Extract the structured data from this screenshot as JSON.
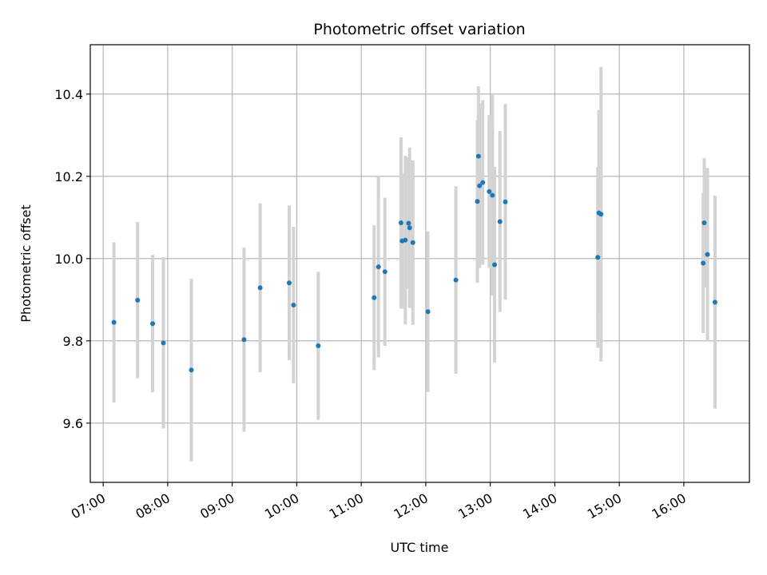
{
  "chart_data": {
    "type": "scatter",
    "title": "Photometric offset variation",
    "xlabel": "UTC time",
    "ylabel": "Photometric offset",
    "x_unit": "HH:MM",
    "xlim": [
      "06:48",
      "17:01"
    ],
    "ylim": [
      9.456,
      10.52
    ],
    "x_ticks": [
      "07:00",
      "08:00",
      "09:00",
      "10:00",
      "11:00",
      "12:00",
      "13:00",
      "14:00",
      "15:00",
      "16:00"
    ],
    "y_ticks": [
      9.6,
      9.8,
      10.0,
      10.2,
      10.4
    ],
    "y_tick_labels": [
      "9.6",
      "9.8",
      "10.0",
      "10.2",
      "10.4"
    ],
    "grid": true,
    "colors": {
      "marker": "#1f77b4",
      "errorbar": "#d3d3d3",
      "grid": "#b0b0b0"
    },
    "series": [
      {
        "points": [
          {
            "x": "07:10",
            "y": 9.845,
            "err": 0.195
          },
          {
            "x": "07:32",
            "y": 9.899,
            "err": 0.19
          },
          {
            "x": "07:46",
            "y": 9.842,
            "err": 0.167
          },
          {
            "x": "07:56",
            "y": 9.795,
            "err": 0.208
          },
          {
            "x": "08:22",
            "y": 9.729,
            "err": 0.222
          },
          {
            "x": "09:11",
            "y": 9.803,
            "err": 0.224
          },
          {
            "x": "09:26",
            "y": 9.929,
            "err": 0.205
          },
          {
            "x": "09:53",
            "y": 9.941,
            "err": 0.188
          },
          {
            "x": "09:57",
            "y": 9.887,
            "err": 0.19
          },
          {
            "x": "10:20",
            "y": 9.788,
            "err": 0.18
          },
          {
            "x": "11:12",
            "y": 9.905,
            "err": 0.176
          },
          {
            "x": "11:16",
            "y": 9.98,
            "err": 0.22
          },
          {
            "x": "11:22",
            "y": 9.968,
            "err": 0.18
          },
          {
            "x": "11:37",
            "y": 10.087,
            "err": 0.208
          },
          {
            "x": "11:38",
            "y": 10.043,
            "err": 0.165
          },
          {
            "x": "11:41",
            "y": 10.045,
            "err": 0.205
          },
          {
            "x": "11:44",
            "y": 10.086,
            "err": 0.16
          },
          {
            "x": "11:45",
            "y": 10.075,
            "err": 0.195
          },
          {
            "x": "11:48",
            "y": 10.039,
            "err": 0.2
          },
          {
            "x": "12:02",
            "y": 9.871,
            "err": 0.195
          },
          {
            "x": "12:28",
            "y": 9.948,
            "err": 0.228
          },
          {
            "x": "12:48",
            "y": 10.139,
            "err": 0.198
          },
          {
            "x": "12:49",
            "y": 10.249,
            "err": 0.17
          },
          {
            "x": "12:50",
            "y": 10.177,
            "err": 0.2
          },
          {
            "x": "12:53",
            "y": 10.185,
            "err": 0.2
          },
          {
            "x": "12:59",
            "y": 10.163,
            "err": 0.186
          },
          {
            "x": "13:02",
            "y": 10.154,
            "err": 0.244
          },
          {
            "x": "13:04",
            "y": 9.985,
            "err": 0.238
          },
          {
            "x": "13:09",
            "y": 10.09,
            "err": 0.22
          },
          {
            "x": "13:14",
            "y": 10.138,
            "err": 0.238
          },
          {
            "x": "14:40",
            "y": 10.003,
            "err": 0.22
          },
          {
            "x": "14:41",
            "y": 10.111,
            "err": 0.25
          },
          {
            "x": "14:43",
            "y": 10.108,
            "err": 0.358
          },
          {
            "x": "16:18",
            "y": 9.989,
            "err": 0.17
          },
          {
            "x": "16:19",
            "y": 10.087,
            "err": 0.157
          },
          {
            "x": "16:22",
            "y": 10.01,
            "err": 0.21
          },
          {
            "x": "16:29",
            "y": 9.894,
            "err": 0.259
          }
        ]
      }
    ]
  }
}
